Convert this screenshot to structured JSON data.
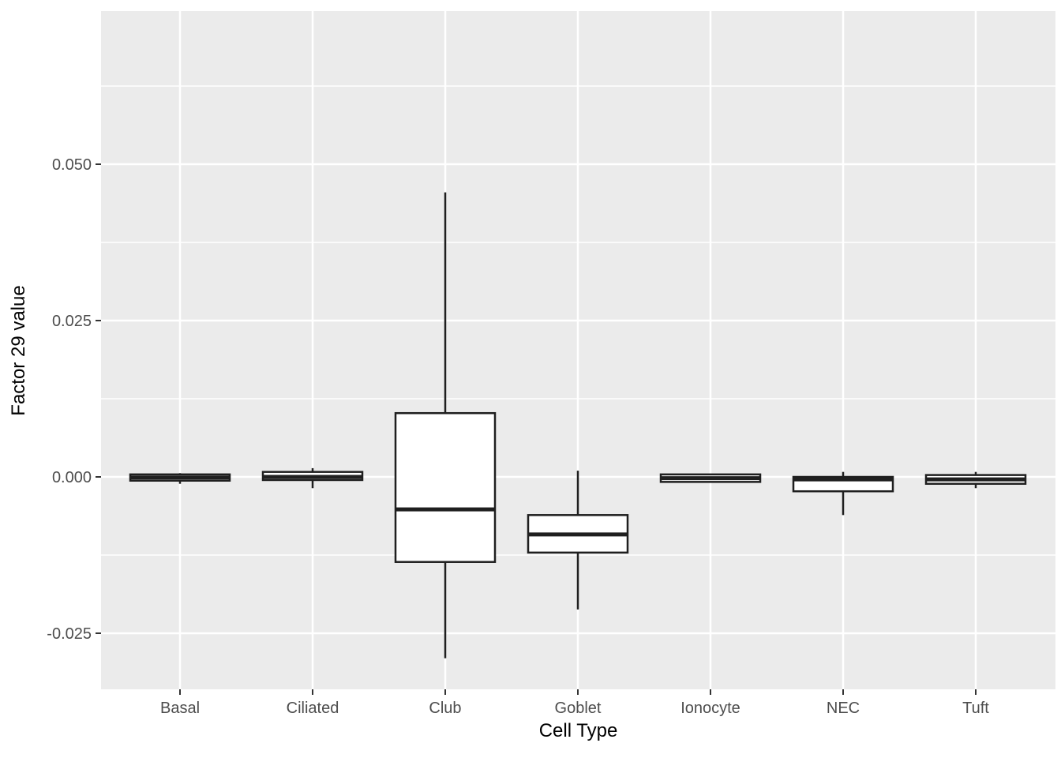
{
  "chart_data": {
    "type": "boxplot",
    "title": "",
    "xlabel": "Cell Type",
    "ylabel": "Factor 29 value",
    "categories": [
      "Basal",
      "Ciliated",
      "Club",
      "Goblet",
      "Ionocyte",
      "NEC",
      "Tuft"
    ],
    "series": [
      {
        "category": "Basal",
        "whisker_low": -0.0011,
        "q1": -0.0006,
        "median": -0.0001,
        "q3": 0.0004,
        "whisker_high": 0.0006
      },
      {
        "category": "Ciliated",
        "whisker_low": -0.0018,
        "q1": -0.0005,
        "median": 0.0,
        "q3": 0.0008,
        "whisker_high": 0.0014
      },
      {
        "category": "Club",
        "whisker_low": -0.029,
        "q1": -0.0136,
        "median": -0.0052,
        "q3": 0.0102,
        "whisker_high": 0.0455
      },
      {
        "category": "Goblet",
        "whisker_low": -0.0212,
        "q1": -0.0121,
        "median": -0.0092,
        "q3": -0.0061,
        "whisker_high": 0.001
      },
      {
        "category": "Ionocyte",
        "whisker_low": -0.0009,
        "q1": -0.0008,
        "median": -0.0002,
        "q3": 0.0004,
        "whisker_high": 0.0005
      },
      {
        "category": "NEC",
        "whisker_low": -0.0061,
        "q1": -0.0023,
        "median": -0.0004,
        "q3": 0.0,
        "whisker_high": 0.0008
      },
      {
        "category": "Tuft",
        "whisker_low": -0.0018,
        "q1": -0.0011,
        "median": -0.0004,
        "q3": 0.0003,
        "whisker_high": 0.0008
      }
    ],
    "y_ticks": [
      {
        "label": "0.050",
        "value": 0.05
      },
      {
        "label": "0.025",
        "value": 0.025
      },
      {
        "label": "0.000",
        "value": 0.0
      },
      {
        "label": "-0.025",
        "value": -0.025
      }
    ],
    "y_minor_ticks": [
      0.0625,
      0.0375,
      0.0125,
      -0.0125
    ],
    "ylim": [
      -0.034,
      0.0745
    ],
    "grid": {
      "major": true,
      "minor": true,
      "background": "panel"
    },
    "legend": false,
    "colors": {
      "panel_bg": "#EBEBEB",
      "grid": "#FFFFFF",
      "box_fill": "#FFFFFF",
      "box_stroke": "#1F1F1F",
      "tick_mark": "#333333",
      "axis_text": "#4D4D4D",
      "axis_title": "#000000",
      "figure_bg": "#FFFFFF"
    }
  }
}
